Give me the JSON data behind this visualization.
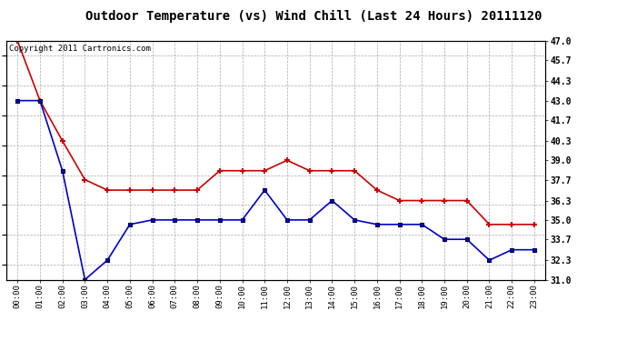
{
  "title": "Outdoor Temperature (vs) Wind Chill (Last 24 Hours) 20111120",
  "copyright_text": "Copyright 2011 Cartronics.com",
  "x_labels": [
    "00:00",
    "01:00",
    "02:00",
    "03:00",
    "04:00",
    "05:00",
    "06:00",
    "07:00",
    "08:00",
    "09:00",
    "10:00",
    "11:00",
    "12:00",
    "13:00",
    "14:00",
    "15:00",
    "16:00",
    "17:00",
    "18:00",
    "19:00",
    "20:00",
    "21:00",
    "22:00",
    "23:00"
  ],
  "red_temp": [
    47.0,
    43.0,
    40.3,
    37.7,
    37.0,
    37.0,
    37.0,
    37.0,
    37.0,
    38.3,
    38.3,
    38.3,
    39.0,
    38.3,
    38.3,
    38.3,
    37.0,
    36.3,
    36.3,
    36.3,
    36.3,
    34.7,
    34.7,
    34.7
  ],
  "blue_wc": [
    43.0,
    43.0,
    38.3,
    31.0,
    32.3,
    34.7,
    35.0,
    35.0,
    35.0,
    35.0,
    35.0,
    37.0,
    35.0,
    35.0,
    36.3,
    35.0,
    34.7,
    34.7,
    34.7,
    33.7,
    33.7,
    32.3,
    33.0,
    33.0
  ],
  "ylim_min": 31.0,
  "ylim_max": 47.0,
  "yticks": [
    31.0,
    32.3,
    33.7,
    35.0,
    36.3,
    37.7,
    39.0,
    40.3,
    41.7,
    43.0,
    44.3,
    45.7,
    47.0
  ],
  "fig_bg_color": "#ffffff",
  "plot_bg_color": "#ffffff",
  "title_bg_color": "#ffffff",
  "red_color": "#cc0000",
  "blue_color": "#0000cc",
  "grid_color": "#aaaaaa",
  "border_color": "#000000",
  "title_fontsize": 10,
  "copyright_fontsize": 6.5,
  "tick_fontsize": 7,
  "xlabel_fontsize": 6.5
}
